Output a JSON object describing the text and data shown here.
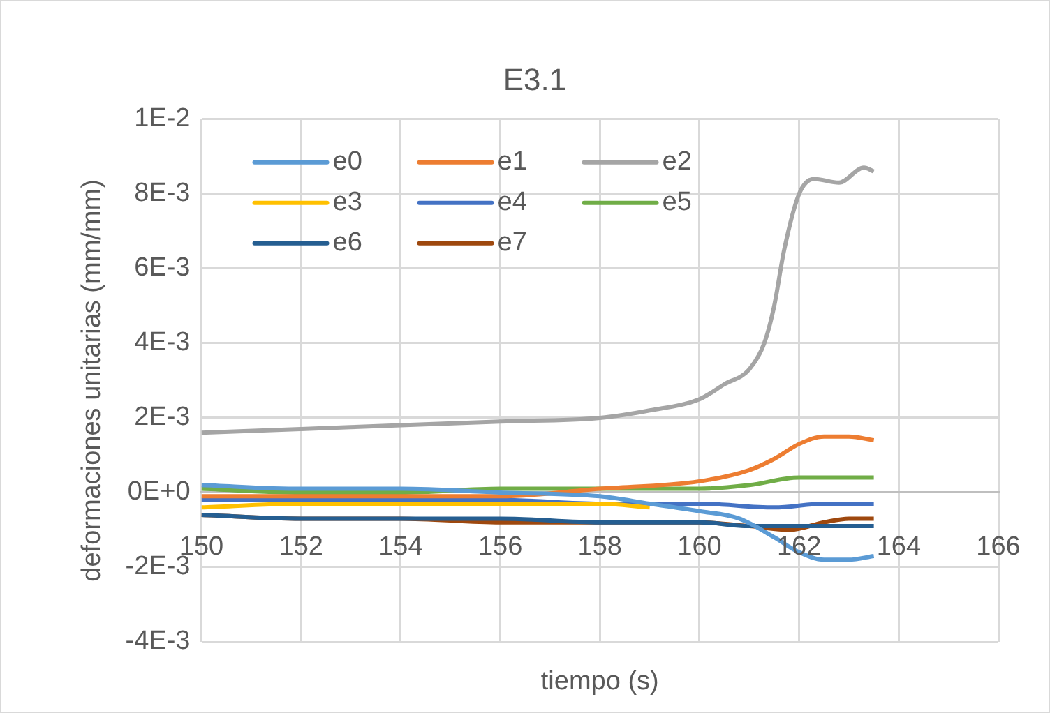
{
  "chart_data": {
    "type": "line",
    "title": "E3.1",
    "xlabel": "tiempo (s)",
    "ylabel": "deformaciones unitarias (mm/mm)",
    "xlim": [
      150,
      166
    ],
    "xticks": [
      150,
      152,
      154,
      156,
      158,
      160,
      162,
      164,
      166
    ],
    "ylim": [
      -0.004,
      0.01
    ],
    "yticks": [
      {
        "value": -0.004,
        "label": "-4E-3"
      },
      {
        "value": -0.002,
        "label": "-2E-3"
      },
      {
        "value": 0,
        "label": "0E+0"
      },
      {
        "value": 0.002,
        "label": "2E-3"
      },
      {
        "value": 0.004,
        "label": "4E-3"
      },
      {
        "value": 0.006,
        "label": "6E-3"
      },
      {
        "value": 0.008,
        "label": "8E-3"
      },
      {
        "value": 0.01,
        "label": "1E-2"
      }
    ],
    "grid": true,
    "legend": "top left",
    "marker": "none",
    "line_style": "solid",
    "series": [
      {
        "name": "e0",
        "color": "#5b9bd5",
        "x": [
          150,
          152,
          154,
          156,
          158,
          159,
          160,
          160.8,
          161.5,
          162,
          162.5,
          163,
          163.5
        ],
        "values": [
          0.0002,
          0.0001,
          0.0001,
          0,
          -0.0001,
          -0.0003,
          -0.0005,
          -0.0007,
          -0.0012,
          -0.0016,
          -0.0018,
          -0.0018,
          -0.0017
        ]
      },
      {
        "name": "e1",
        "color": "#ed7d31",
        "x": [
          150,
          152,
          154,
          156,
          158,
          160,
          161,
          161.5,
          162,
          162.5,
          163,
          163.5
        ],
        "values": [
          -0.0001,
          -0.0001,
          -0.0001,
          -0.0001,
          0.0001,
          0.0003,
          0.0006,
          0.0009,
          0.0013,
          0.0015,
          0.0015,
          0.0014
        ]
      },
      {
        "name": "e2",
        "color": "#a5a5a5",
        "x": [
          150,
          152,
          154,
          156,
          158,
          159,
          160,
          160.5,
          161,
          161.3,
          161.5,
          161.7,
          162,
          162.3,
          162.8,
          163.3,
          163.5
        ],
        "values": [
          0.0016,
          0.0017,
          0.0018,
          0.0019,
          0.002,
          0.0022,
          0.0025,
          0.0029,
          0.0033,
          0.004,
          0.005,
          0.0065,
          0.008,
          0.0084,
          0.0083,
          0.0087,
          0.0086
        ]
      },
      {
        "name": "e3",
        "color": "#ffc000",
        "x": [
          150,
          152,
          154,
          156,
          158,
          159
        ],
        "values": [
          -0.0004,
          -0.0003,
          -0.0003,
          -0.0003,
          -0.0003,
          -0.0004
        ]
      },
      {
        "name": "e4",
        "color": "#4472c4",
        "x": [
          150,
          152,
          154,
          156,
          158,
          160,
          161.5,
          162.5,
          163.5
        ],
        "values": [
          -0.0002,
          -0.0002,
          -0.0002,
          -0.0002,
          -0.0003,
          -0.0003,
          -0.0004,
          -0.0003,
          -0.0003
        ]
      },
      {
        "name": "e5",
        "color": "#70ad47",
        "x": [
          150,
          152,
          154,
          156,
          158,
          160,
          161,
          162,
          163,
          163.5
        ],
        "values": [
          0.0001,
          0,
          0,
          0.0001,
          0.0001,
          0.0001,
          0.0002,
          0.0004,
          0.0004,
          0.0004
        ]
      },
      {
        "name": "e6",
        "color": "#255e91",
        "x": [
          150,
          152,
          154,
          156,
          158,
          160,
          161,
          162,
          163,
          163.5
        ],
        "values": [
          -0.0006,
          -0.0007,
          -0.0007,
          -0.0007,
          -0.0008,
          -0.0008,
          -0.0009,
          -0.0009,
          -0.0009,
          -0.0009
        ]
      },
      {
        "name": "e7",
        "color": "#9e480e",
        "x": [
          150,
          152,
          154,
          156,
          158,
          160,
          161,
          161.8,
          162.5,
          163,
          163.5
        ],
        "values": [
          -0.0006,
          -0.0007,
          -0.0007,
          -0.0008,
          -0.0008,
          -0.0008,
          -0.0009,
          -0.001,
          -0.0008,
          -0.0007,
          -0.0007
        ]
      }
    ]
  }
}
